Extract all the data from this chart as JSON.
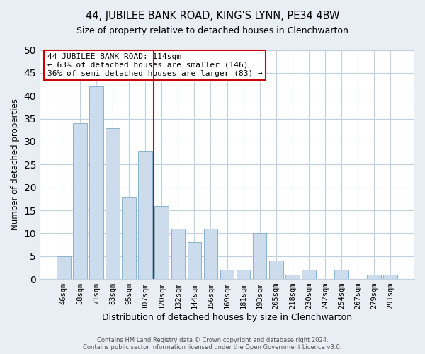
{
  "title": "44, JUBILEE BANK ROAD, KING'S LYNN, PE34 4BW",
  "subtitle": "Size of property relative to detached houses in Clenchwarton",
  "xlabel": "Distribution of detached houses by size in Clenchwarton",
  "ylabel": "Number of detached properties",
  "categories": [
    "46sqm",
    "58sqm",
    "71sqm",
    "83sqm",
    "95sqm",
    "107sqm",
    "120sqm",
    "132sqm",
    "144sqm",
    "156sqm",
    "169sqm",
    "181sqm",
    "193sqm",
    "205sqm",
    "218sqm",
    "230sqm",
    "242sqm",
    "254sqm",
    "267sqm",
    "279sqm",
    "291sqm"
  ],
  "values": [
    5,
    34,
    42,
    33,
    18,
    28,
    16,
    11,
    8,
    11,
    2,
    2,
    10,
    4,
    1,
    2,
    0,
    2,
    0,
    1,
    1
  ],
  "bar_color": "#ccdcec",
  "bar_edge_color": "#8ab4cc",
  "vline_x": 6.0,
  "vline_color": "#cc0000",
  "annotation_text_line1": "44 JUBILEE BANK ROAD: 114sqm",
  "annotation_text_line2": "← 63% of detached houses are smaller (146)",
  "annotation_text_line3": "36% of semi-detached houses are larger (83) →",
  "annotation_box_color": "#ffffff",
  "annotation_box_edge": "#cc0000",
  "ylim": [
    0,
    50
  ],
  "yticks": [
    0,
    5,
    10,
    15,
    20,
    25,
    30,
    35,
    40,
    45,
    50
  ],
  "footer_line1": "Contains HM Land Registry data © Crown copyright and database right 2024.",
  "footer_line2": "Contains public sector information licensed under the Open Government Licence v3.0.",
  "fig_bg_color": "#e8eef4",
  "plot_bg_color": "#ffffff",
  "grid_color": "#c0d0e0"
}
